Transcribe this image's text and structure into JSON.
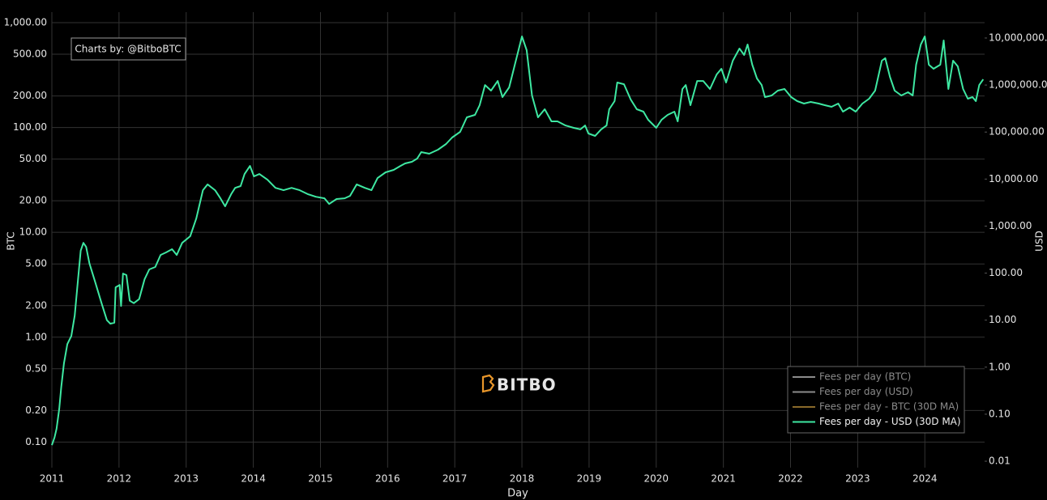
{
  "chart_data": {
    "type": "line",
    "annotation": "Charts by: @BitboBTC",
    "watermark": "BITBO",
    "xlabel": "Day",
    "ylabel": "BTC",
    "y2label": "USD",
    "log_y": true,
    "log_y2": true,
    "grid": true,
    "legend": "bottom-right",
    "xlim": [
      2011,
      2024.89
    ],
    "xticks": [
      2011,
      2012,
      2013,
      2014,
      2015,
      2016,
      2017,
      2018,
      2019,
      2020,
      2021,
      2022,
      2023,
      2024
    ],
    "ylim": [
      0.057,
      1260
    ],
    "yticks": [
      {
        "value": 1000,
        "label": "1,000.00"
      },
      {
        "value": 500,
        "label": "500.00"
      },
      {
        "value": 200,
        "label": "200.00"
      },
      {
        "value": 100,
        "label": "100.00"
      },
      {
        "value": 50,
        "label": "50.00"
      },
      {
        "value": 20,
        "label": "20.00"
      },
      {
        "value": 10,
        "label": "10.00"
      },
      {
        "value": 5,
        "label": "5.00"
      },
      {
        "value": 2,
        "label": "2.00"
      },
      {
        "value": 1,
        "label": "1.00"
      },
      {
        "value": 0.5,
        "label": "0.50"
      },
      {
        "value": 0.2,
        "label": "0.20"
      },
      {
        "value": 0.1,
        "label": "0.10"
      }
    ],
    "y2lim": [
      0.0073,
      35500000
    ],
    "y2ticks": [
      {
        "value": 10000000,
        "label": "10,000,000."
      },
      {
        "value": 1000000,
        "label": "1,000,000.0"
      },
      {
        "value": 100000,
        "label": "100,000.00"
      },
      {
        "value": 10000,
        "label": "10,000.00"
      },
      {
        "value": 1000,
        "label": "1,000.00"
      },
      {
        "value": 100,
        "label": "100.00"
      },
      {
        "value": 10,
        "label": "10.00"
      },
      {
        "value": 1,
        "label": "1.00"
      },
      {
        "value": 0.1,
        "label": "0.10"
      },
      {
        "value": 0.01,
        "label": "0.01"
      }
    ],
    "x": [
      2011.0,
      2011.04,
      2011.07,
      2011.11,
      2011.14,
      2011.18,
      2011.23,
      2011.29,
      2011.34,
      2011.39,
      2011.43,
      2011.47,
      2011.51,
      2011.56,
      2011.65,
      2011.74,
      2011.82,
      2011.87,
      2011.93,
      2011.95,
      2012.01,
      2012.03,
      2012.06,
      2012.11,
      2012.16,
      2012.22,
      2012.3,
      2012.38,
      2012.45,
      2012.54,
      2012.62,
      2012.7,
      2012.79,
      2012.86,
      2012.94,
      2013.06,
      2013.15,
      2013.25,
      2013.32,
      2013.43,
      2013.51,
      2013.58,
      2013.67,
      2013.73,
      2013.81,
      2013.87,
      2013.95,
      2014.01,
      2014.09,
      2014.21,
      2014.33,
      2014.45,
      2014.57,
      2014.69,
      2014.81,
      2014.93,
      2015.06,
      2015.13,
      2015.24,
      2015.36,
      2015.44,
      2015.54,
      2015.66,
      2015.76,
      2015.85,
      2015.97,
      2016.09,
      2016.19,
      2016.26,
      2016.36,
      2016.44,
      2016.5,
      2016.62,
      2016.75,
      2016.87,
      2016.96,
      2017.08,
      2017.18,
      2017.3,
      2017.37,
      2017.45,
      2017.54,
      2017.64,
      2017.71,
      2017.81,
      2017.9,
      2018.0,
      2018.07,
      2018.15,
      2018.24,
      2018.34,
      2018.44,
      2018.53,
      2018.65,
      2018.77,
      2018.87,
      2018.94,
      2018.99,
      2019.09,
      2019.18,
      2019.26,
      2019.3,
      2019.38,
      2019.42,
      2019.52,
      2019.62,
      2019.71,
      2019.81,
      2019.88,
      2020.0,
      2020.08,
      2020.17,
      2020.27,
      2020.32,
      2020.39,
      2020.44,
      2020.51,
      2020.61,
      2020.7,
      2020.8,
      2020.9,
      2020.97,
      2021.04,
      2021.14,
      2021.24,
      2021.31,
      2021.36,
      2021.43,
      2021.5,
      2021.57,
      2021.62,
      2021.72,
      2021.81,
      2021.91,
      2022.01,
      2022.1,
      2022.2,
      2022.3,
      2022.42,
      2022.51,
      2022.61,
      2022.71,
      2022.78,
      2022.88,
      2022.97,
      2023.07,
      2023.17,
      2023.26,
      2023.36,
      2023.41,
      2023.48,
      2023.55,
      2023.65,
      2023.75,
      2023.82,
      2023.87,
      2023.94,
      2024.0,
      2024.06,
      2024.13,
      2024.23,
      2024.28,
      2024.35,
      2024.42,
      2024.49,
      2024.57,
      2024.64,
      2024.71,
      2024.76,
      2024.81,
      2024.87
    ],
    "series": [
      {
        "name": "Fees per day (BTC)",
        "color": "#8c8c8c",
        "visible": false
      },
      {
        "name": "Fees per day (USD)",
        "color": "#8c8c8c",
        "visible": false
      },
      {
        "name": "Fees per day - BTC (30D MA)",
        "color": "#8a6a2a",
        "visible": false
      },
      {
        "name": "Fees per day - USD (30D MA)",
        "color": "#3ee8a2",
        "visible": true,
        "axis": "y2",
        "values": [
          0.022,
          0.032,
          0.049,
          0.13,
          0.38,
          1.2,
          3.1,
          4.6,
          12.5,
          74,
          300,
          440,
          360,
          160,
          61,
          23,
          10,
          8.4,
          8.8,
          50,
          56,
          20,
          98,
          91,
          26,
          23,
          28,
          74,
          120,
          135,
          244,
          275,
          323,
          244,
          440,
          608,
          1450,
          5800,
          7700,
          5800,
          3900,
          2640,
          4800,
          6500,
          7100,
          12800,
          19000,
          11400,
          12800,
          9700,
          6500,
          5800,
          6500,
          5800,
          4800,
          4200,
          3900,
          2960,
          3760,
          3900,
          4400,
          7700,
          6500,
          5800,
          10500,
          13900,
          15700,
          19000,
          21500,
          23300,
          27300,
          37500,
          34600,
          42200,
          55700,
          76400,
          101000,
          206000,
          232000,
          373000,
          1000000,
          760000,
          1220000,
          555000,
          890000,
          2930000,
          10800000,
          5520000,
          600000,
          206000,
          306000,
          169000,
          169000,
          138000,
          123000,
          114000,
          138000,
          93100,
          82800,
          114000,
          138000,
          306000,
          455000,
          1130000,
          1040000,
          492000,
          306000,
          272000,
          183000,
          123000,
          183000,
          232000,
          272000,
          169000,
          824000,
          1000000,
          373000,
          1220000,
          1220000,
          824000,
          1680000,
          2220000,
          1130000,
          3300000,
          5970000,
          4350000,
          7280000,
          2700000,
          1380000,
          1000000,
          555000,
          600000,
          760000,
          824000,
          555000,
          455000,
          404000,
          437000,
          404000,
          373000,
          344000,
          404000,
          272000,
          331000,
          272000,
          404000,
          512000,
          760000,
          3300000,
          3720000,
          1490000,
          760000,
          600000,
          703000,
          600000,
          2700000,
          7280000,
          10800000,
          2700000,
          2220000,
          2700000,
          8870000,
          824000,
          3300000,
          2500000,
          824000,
          512000,
          555000,
          455000,
          1000000,
          1320000
        ]
      }
    ]
  }
}
